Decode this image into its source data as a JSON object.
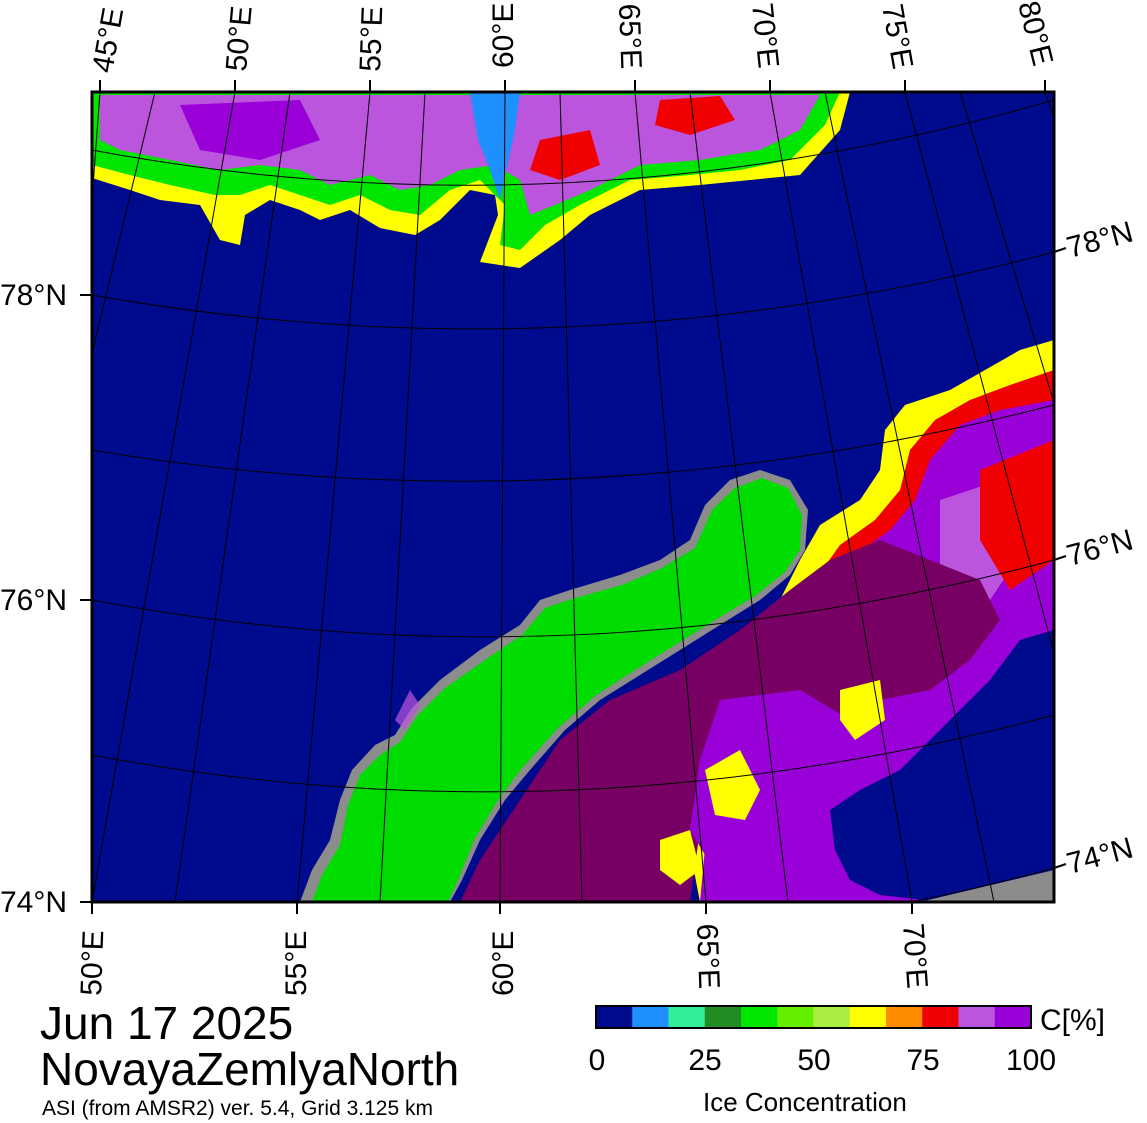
{
  "map": {
    "lat_labels_left": [
      "78°N",
      "76°N",
      "74°N"
    ],
    "lat_labels_right": [
      "78°N",
      "76°N",
      "74°N"
    ],
    "lon_labels_top": [
      "45°E",
      "50°E",
      "55°E",
      "60°E",
      "65°E",
      "70°E",
      "75°E",
      "80°E"
    ],
    "lon_labels_bottom": [
      "50°E",
      "55°E",
      "60°E",
      "65°E",
      "70°E"
    ],
    "colors": {
      "open_water": "#000a8c",
      "land": "#00dc00",
      "no_data": "#8c8c8c",
      "ice_high": "#780064",
      "ice_violet": "#9a00d8",
      "ice_lilac": "#bb55dd",
      "ice_red": "#f00000",
      "ice_orange": "#ff8c00",
      "ice_yellow": "#ffff00",
      "ice_green": "#00e600",
      "ice_dkgreen": "#228b22",
      "ice_cyan": "#33ee99",
      "ice_blue": "#1e90ff"
    }
  },
  "title": {
    "date": "Jun 17 2025",
    "region": "NovayaZemlyaNorth",
    "subtitle": "ASI (from AMSR2) ver. 5.4,  Grid 3.125 km"
  },
  "colorbar": {
    "unit": "C[%]",
    "label": "Ice Concentration",
    "ticks": [
      "0",
      "25",
      "50",
      "75",
      "100"
    ],
    "colors": [
      "#000a8c",
      "#1e90ff",
      "#33ee99",
      "#228b22",
      "#00e600",
      "#66ee00",
      "#aaee44",
      "#ffff00",
      "#ff8c00",
      "#f00000",
      "#bb55dd",
      "#9a00d8"
    ]
  }
}
